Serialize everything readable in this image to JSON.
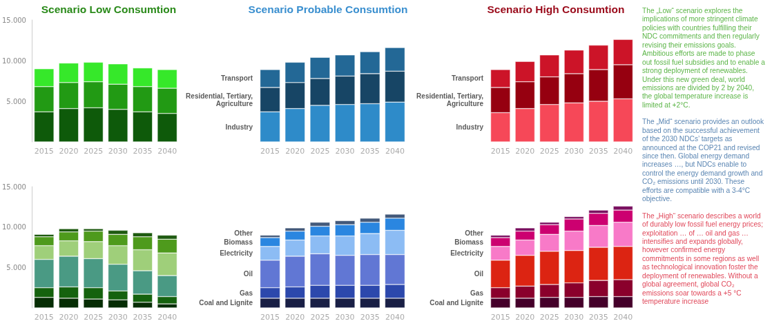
{
  "chart_data": [
    {
      "type": "bar",
      "title": "Scenario Low Consumtion",
      "stacked": true,
      "categories": [
        "2015",
        "2020",
        "2025",
        "2030",
        "2035",
        "2040"
      ],
      "ylim": [
        0,
        15000
      ],
      "yticks": [
        {
          "value": 5000,
          "label": "5.000"
        },
        {
          "value": 10000,
          "label": "10.000"
        },
        {
          "value": 15000,
          "label": "15.000"
        }
      ],
      "series": [
        {
          "color": "#0e5a0a",
          "values": [
            3700,
            4100,
            4200,
            4000,
            3700,
            3500
          ]
        },
        {
          "color": "#229a14",
          "values": [
            3100,
            3200,
            3200,
            3100,
            3100,
            3100
          ]
        },
        {
          "color": "#36e82a",
          "values": [
            2200,
            2400,
            2400,
            2500,
            2300,
            2300
          ]
        }
      ]
    },
    {
      "type": "bar",
      "title": "Scenario Probable Consumtion",
      "stacked": true,
      "tick_labels": "x",
      "categories": [
        "2015",
        "2020",
        "2025",
        "2030",
        "2035",
        "2040"
      ],
      "ylim": [
        0,
        15000
      ],
      "series": [
        {
          "name": "Industry",
          "color": "#2e8bc9",
          "values": [
            3700,
            4100,
            4500,
            4600,
            4700,
            4900
          ]
        },
        {
          "name": "Residential, Tertiary, Agriculture",
          "color": "#174565",
          "values": [
            3000,
            3200,
            3300,
            3500,
            3700,
            3800
          ]
        },
        {
          "name": "Transport",
          "color": "#236896",
          "values": [
            2200,
            2500,
            2600,
            2600,
            2700,
            2900
          ]
        }
      ]
    },
    {
      "type": "bar",
      "title": "Scenario High Consumtion",
      "stacked": true,
      "tick_labels": "x",
      "categories": [
        "2015",
        "2020",
        "2025",
        "2030",
        "2035",
        "2040"
      ],
      "ylim": [
        0,
        15000
      ],
      "series": [
        {
          "name": "Industry",
          "color": "#f64858",
          "values": [
            3600,
            4100,
            4600,
            4800,
            5000,
            5300
          ]
        },
        {
          "name": "Residential, Tertiary, Agriculture",
          "color": "#960010",
          "values": [
            3100,
            3300,
            3400,
            3600,
            3900,
            4200
          ]
        },
        {
          "name": "Transport",
          "color": "#cc1428",
          "values": [
            2200,
            2500,
            2700,
            2900,
            3000,
            3100
          ]
        }
      ]
    },
    {
      "type": "bar",
      "stacked": true,
      "categories": [
        "2015",
        "2020",
        "2025",
        "2030",
        "2035",
        "2040"
      ],
      "ylim": [
        0,
        15000
      ],
      "yticks": [
        {
          "value": 5000,
          "label": "5.000"
        },
        {
          "value": 10000,
          "label": "10.000"
        },
        {
          "value": 15000,
          "label": "15.000"
        }
      ],
      "series": [
        {
          "color": "#062d04",
          "values": [
            1300,
            1200,
            1100,
            1000,
            700,
            500
          ]
        },
        {
          "color": "#15620e",
          "values": [
            1200,
            1400,
            1400,
            1100,
            1000,
            900
          ]
        },
        {
          "color": "#4a9a84",
          "values": [
            3500,
            3800,
            3600,
            3300,
            2900,
            2600
          ]
        },
        {
          "color": "#9fcf7a",
          "values": [
            1700,
            1900,
            2100,
            2300,
            2600,
            2800
          ]
        },
        {
          "color": "#4e9a1c",
          "values": [
            1100,
            1100,
            1300,
            1400,
            1600,
            1700
          ]
        },
        {
          "color": "#1e5a10",
          "values": [
            300,
            400,
            300,
            500,
            500,
            500
          ]
        }
      ]
    },
    {
      "type": "bar",
      "stacked": true,
      "tick_labels": "x",
      "categories": [
        "2015",
        "2020",
        "2025",
        "2030",
        "2035",
        "2040"
      ],
      "ylim": [
        0,
        15000
      ],
      "series": [
        {
          "name": "Coal and Lignite",
          "color": "#191f45",
          "values": [
            1200,
            1200,
            1200,
            1200,
            1200,
            1200
          ]
        },
        {
          "name": "Gas",
          "color": "#2c48ac",
          "values": [
            1300,
            1400,
            1600,
            1600,
            1600,
            1700
          ]
        },
        {
          "name": "Oil",
          "color": "#6177d4",
          "values": [
            3400,
            3800,
            3900,
            3700,
            3800,
            3700
          ]
        },
        {
          "name": "Electricity",
          "color": "#8cbcf4",
          "values": [
            1700,
            2000,
            2200,
            2400,
            2600,
            3000
          ]
        },
        {
          "name": "Biomass",
          "color": "#2a86e0",
          "values": [
            1100,
            1100,
            1200,
            1400,
            1400,
            1500
          ]
        },
        {
          "name": "Other",
          "color": "#43597a",
          "values": [
            300,
            400,
            500,
            500,
            500,
            500
          ]
        }
      ]
    },
    {
      "type": "bar",
      "stacked": true,
      "tick_labels": "x",
      "categories": [
        "2015",
        "2020",
        "2025",
        "2030",
        "2035",
        "2040"
      ],
      "ylim": [
        0,
        15000
      ],
      "series": [
        {
          "name": "Coal and Lignite",
          "color": "#45002a",
          "values": [
            1200,
            1200,
            1300,
            1300,
            1400,
            1400
          ]
        },
        {
          "name": "Gas",
          "color": "#8a002c",
          "values": [
            1300,
            1500,
            1600,
            1800,
            2000,
            2100
          ]
        },
        {
          "name": "Oil",
          "color": "#dc2412",
          "values": [
            3400,
            3800,
            4100,
            4000,
            4100,
            4100
          ]
        },
        {
          "name": "Electricity",
          "color": "#f87ac8",
          "values": [
            1700,
            1900,
            2100,
            2400,
            2700,
            3000
          ]
        },
        {
          "name": "Biomass",
          "color": "#cc0070",
          "values": [
            1100,
            1100,
            1200,
            1500,
            1500,
            1500
          ]
        },
        {
          "name": "Other",
          "color": "#7a1060",
          "values": [
            300,
            400,
            300,
            300,
            400,
            500
          ]
        }
      ]
    },
    {
      "type": "other",
      "annotations": [
        "The „Low“ scenario explores the implications of more stringent climate policies with countries fulfilling their NDC commitments and then regularly revising their emissions goals. Ambitious efforts are made to phase out fossil fuel subsidies and to enable a strong deployment of renewables. Under this new green deal, world emissions are divided by 2 by 2040, the global temperature increase is limited at +2°C.",
        "The „Mid“ scenario provides an outlook based on the successful achievement of the 2030 NDCs’ targets as announced at the COP21 and revised since then. Global energy demand increases …, but NDCs enable to control the energy demand growth and CO₂ emissions until 2030. These efforts are compatible with a 3-4°C objective.",
        "The „High“ scenario describes a world of durably low fossil fuel energy prices; exploitation … of … oil and gas … intensifies and expands globally, however confirmed energy commitments in some regions as well as technological innovation foster the deployment of renewables. Without a global agreement, global CO₂ emissions soar towards a +5 °C temperature increase"
      ]
    }
  ]
}
